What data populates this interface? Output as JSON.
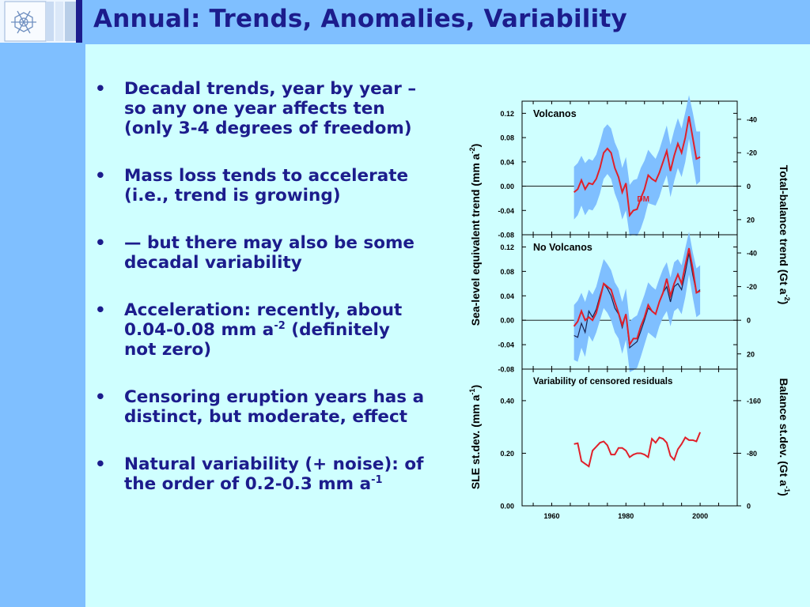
{
  "title": "Annual: Trends, Anomalies, Variability",
  "bullets": [
    {
      "text": "Decadal trends, year by year – so any one year affects ten (only 3-4 degrees of freedom)"
    },
    {
      "text": "Mass loss tends to accelerate (i.e., trend is growing)"
    },
    {
      "text": "— but there may also be some decadal variability"
    },
    {
      "text": "Acceleration: recently, about 0.04-0.08 mm a",
      "sup": "-2",
      "after": " (definitely not zero)"
    },
    {
      "text": "Censoring eruption years has a distinct, but moderate, effect"
    },
    {
      "text": "Natural variability (+ noise): of the order of 0.2-0.3 mm a",
      "sup": "-1",
      "after": ""
    }
  ],
  "colors": {
    "header": "#7fbfff",
    "background": "#cfffff",
    "text": "#1c1c8c",
    "band": "#7fbfff",
    "red": "#e0202a",
    "dark": "#1a2350"
  },
  "chart_data": [
    {
      "type": "line",
      "title": "Volcanos",
      "annotation": "DM",
      "ylabel_left": "Sea-level equivalent trend (mm a",
      "ylabel_left_sup": "-2",
      "ylabel_left_end": ")",
      "ylabel_right": "Total-balance trend (Gt a",
      "ylabel_right_sup": "-2",
      "ylabel_right_end": ")",
      "ylim": [
        -0.08,
        0.14
      ],
      "yticks": [
        "0.12",
        "0.08",
        "0.04",
        "0.00",
        "-0.04",
        "-0.08"
      ],
      "yticks_right": [
        "-40",
        "-20",
        "0",
        "20"
      ],
      "x": [
        1966,
        1967,
        1968,
        1969,
        1970,
        1971,
        1972,
        1973,
        1974,
        1975,
        1976,
        1977,
        1978,
        1979,
        1980,
        1981,
        1982,
        1983,
        1984,
        1985,
        1986,
        1987,
        1988,
        1989,
        1990,
        1991,
        1992,
        1993,
        1994,
        1995,
        1996,
        1997,
        1998,
        1999,
        2000
      ],
      "series": [
        {
          "values": [
            -0.01,
            -0.005,
            0.01,
            -0.005,
            0.005,
            0.003,
            0.012,
            0.03,
            0.055,
            0.062,
            0.055,
            0.03,
            0.015,
            -0.01,
            0.005,
            -0.048,
            -0.04,
            -0.038,
            -0.02,
            -0.005,
            0.018,
            0.012,
            0.008,
            0.022,
            0.04,
            0.058,
            0.025,
            0.05,
            0.07,
            0.055,
            0.08,
            0.115,
            0.08,
            0.045,
            0.048
          ]
        },
        {
          "role": "upper",
          "values": [
            0.032,
            0.038,
            0.05,
            0.038,
            0.045,
            0.042,
            0.052,
            0.072,
            0.095,
            0.102,
            0.095,
            0.072,
            0.058,
            0.03,
            0.048,
            0.002,
            0.01,
            0.012,
            0.03,
            0.042,
            0.06,
            0.052,
            0.045,
            0.06,
            0.08,
            0.1,
            0.068,
            0.092,
            0.112,
            0.095,
            0.122,
            0.15,
            0.122,
            0.09,
            0.09
          ]
        },
        {
          "role": "lower",
          "values": [
            -0.055,
            -0.048,
            -0.032,
            -0.048,
            -0.038,
            -0.04,
            -0.03,
            -0.012,
            0.012,
            0.02,
            0.012,
            -0.012,
            -0.028,
            -0.055,
            -0.04,
            -0.082,
            -0.08,
            -0.082,
            -0.07,
            -0.052,
            -0.028,
            -0.03,
            -0.032,
            -0.018,
            0.002,
            0.018,
            -0.018,
            0.008,
            0.03,
            0.015,
            0.04,
            0.078,
            0.04,
            0.002,
            0.008
          ]
        }
      ]
    },
    {
      "type": "line",
      "title": "No Volcanos",
      "ylim": [
        -0.08,
        0.14
      ],
      "yticks": [
        "0.12",
        "0.08",
        "0.04",
        "0.00",
        "-0.04",
        "-0.08"
      ],
      "yticks_right": [
        "-40",
        "-20",
        "0",
        "20"
      ],
      "x": [
        1966,
        1967,
        1968,
        1969,
        1970,
        1971,
        1972,
        1973,
        1974,
        1975,
        1976,
        1977,
        1978,
        1979,
        1980,
        1981,
        1982,
        1983,
        1984,
        1985,
        1986,
        1987,
        1988,
        1989,
        1990,
        1991,
        1992,
        1993,
        1994,
        1995,
        1996,
        1997,
        1998,
        1999,
        2000
      ],
      "series": [
        {
          "values": [
            -0.025,
            -0.028,
            -0.005,
            -0.02,
            0.015,
            0.005,
            0.018,
            0.04,
            0.06,
            0.052,
            0.04,
            0.02,
            0.01,
            -0.012,
            0.01,
            -0.045,
            -0.04,
            -0.035,
            -0.018,
            0.0,
            0.02,
            0.015,
            0.01,
            0.03,
            0.045,
            0.055,
            0.03,
            0.055,
            0.06,
            0.05,
            0.078,
            0.11,
            0.075,
            0.045,
            0.05
          ]
        },
        {
          "values": [
            -0.01,
            -0.002,
            0.015,
            0.0,
            0.005,
            0.0,
            0.012,
            0.035,
            0.06,
            0.055,
            0.05,
            0.03,
            0.012,
            -0.008,
            0.01,
            -0.04,
            -0.03,
            -0.03,
            -0.01,
            0.005,
            0.025,
            0.015,
            0.01,
            0.03,
            0.045,
            0.068,
            0.04,
            0.06,
            0.075,
            0.06,
            0.09,
            0.118,
            0.085,
            0.045,
            0.048
          ]
        },
        {
          "role": "upper",
          "values": [
            0.025,
            0.032,
            0.045,
            0.03,
            0.05,
            0.042,
            0.055,
            0.078,
            0.1,
            0.092,
            0.082,
            0.062,
            0.052,
            0.03,
            0.052,
            -0.002,
            0.004,
            0.008,
            0.025,
            0.042,
            0.062,
            0.055,
            0.05,
            0.068,
            0.084,
            0.095,
            0.07,
            0.095,
            0.1,
            0.09,
            0.118,
            0.145,
            0.112,
            0.085,
            0.09
          ]
        },
        {
          "role": "lower",
          "values": [
            -0.065,
            -0.068,
            -0.045,
            -0.06,
            -0.025,
            -0.035,
            -0.02,
            0.0,
            0.02,
            0.012,
            0.0,
            -0.02,
            -0.03,
            -0.055,
            -0.032,
            -0.085,
            -0.082,
            -0.078,
            -0.06,
            -0.04,
            -0.02,
            -0.025,
            -0.03,
            -0.01,
            0.005,
            0.015,
            -0.01,
            0.015,
            0.02,
            0.01,
            0.038,
            0.075,
            0.038,
            0.005,
            0.01
          ]
        }
      ]
    },
    {
      "type": "line",
      "title": "Variability of censored residuals",
      "ylabel_left": "SLE st.dev. (mm a",
      "ylabel_left_sup": "-1",
      "ylabel_left_end": ")",
      "ylabel_right": "Balance st.dev. (Gt a",
      "ylabel_right_sup": "-1",
      "ylabel_right_end": ")",
      "ylim": [
        0.0,
        0.52
      ],
      "yticks": [
        "0.40",
        "0.20",
        "0.00"
      ],
      "yticks_right": [
        "-160",
        "-80",
        "0"
      ],
      "xticks": [
        "1960",
        "1980",
        "2000"
      ],
      "x": [
        1966,
        1967,
        1968,
        1969,
        1970,
        1971,
        1972,
        1973,
        1974,
        1975,
        1976,
        1977,
        1978,
        1979,
        1980,
        1981,
        1982,
        1983,
        1984,
        1985,
        1986,
        1987,
        1988,
        1989,
        1990,
        1991,
        1992,
        1993,
        1994,
        1995,
        1996,
        1997,
        1998,
        1999,
        2000
      ],
      "series": [
        {
          "values": [
            0.235,
            0.238,
            0.17,
            0.16,
            0.15,
            0.21,
            0.225,
            0.24,
            0.245,
            0.23,
            0.195,
            0.195,
            0.22,
            0.22,
            0.21,
            0.185,
            0.195,
            0.2,
            0.2,
            0.195,
            0.185,
            0.255,
            0.24,
            0.26,
            0.255,
            0.24,
            0.19,
            0.175,
            0.215,
            0.235,
            0.26,
            0.25,
            0.25,
            0.245,
            0.28
          ]
        }
      ]
    }
  ]
}
